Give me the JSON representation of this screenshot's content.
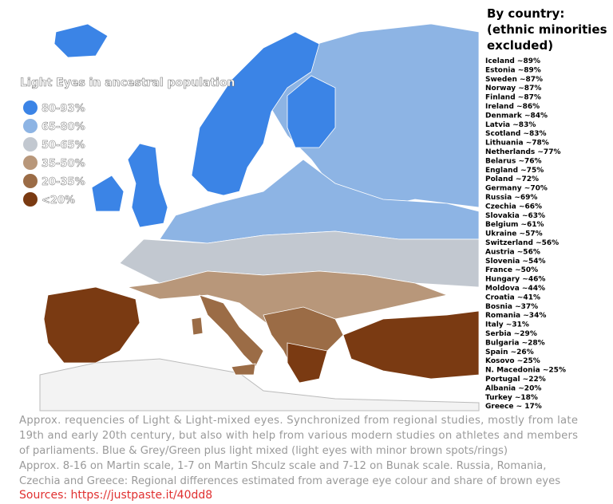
{
  "legend": {
    "title": "Light Eyes in ancestral population",
    "items": [
      {
        "label": "80-93%",
        "color": "#3b84e6"
      },
      {
        "label": "65-80%",
        "color": "#8db4e4"
      },
      {
        "label": "50-65%",
        "color": "#c2c8d0"
      },
      {
        "label": "35-50%",
        "color": "#b8977a"
      },
      {
        "label": "20-35%",
        "color": "#9b6c46"
      },
      {
        "label": "<20%",
        "color": "#7a3a12"
      }
    ]
  },
  "side_panel": {
    "title_lines": [
      "By country:",
      "(ethnic minorities",
      "excluded)"
    ],
    "countries": [
      "Iceland ~89%",
      "Estonia ~89%",
      "Sweden ~87%",
      "Norway ~87%",
      "Finland ~87%",
      "Ireland ~86%",
      "Denmark ~84%",
      "Latvia ~83%",
      "Scotland ~83%",
      "Lithuania ~78%",
      "Netherlands ~77%",
      "Belarus ~76%",
      "England ~75%",
      "Poland ~72%",
      "Germany ~70%",
      "Russia ~69%",
      "Czechia ~66%",
      "Slovakia ~63%",
      "Belgium ~61%",
      "Ukraine ~57%",
      "Switzerland ~56%",
      "Austria ~56%",
      "Slovenia ~54%",
      "France ~50%",
      "Hungary ~46%",
      "Moldova ~44%",
      "Croatia ~41%",
      "Bosnia ~37%",
      "Romania ~34%",
      "Italy ~31%",
      "Serbia ~29%",
      "Bulgaria ~28%",
      "Spain ~26%",
      "Kosovo ~25%",
      "N. Macedonia ~25%",
      "Portugal ~22%",
      "Albania ~20%",
      "Turkey ~18%",
      "Greece ~ 17%"
    ]
  },
  "caption": {
    "lines": [
      "Approx. requencies of Light & Light-mixed eyes. Synchronized from regional studies, mostly from late",
      "19th and early 20th century, but also with help from various modern studies on athletes and members",
      "of parliaments.  Blue & Grey/Green plus light mixed (light eyes with minor brown spots/rings)",
      "Approx. 8-16 on Martin scale, 1-7 on Martin Shculz scale and 7-12 on Bunak scale. Russia, Romania,",
      "Czechia and Greece: Regional differences estimated from average eye colour and share of brown eyes"
    ],
    "source": "Sources: https://justpaste.it/40dd8"
  }
}
